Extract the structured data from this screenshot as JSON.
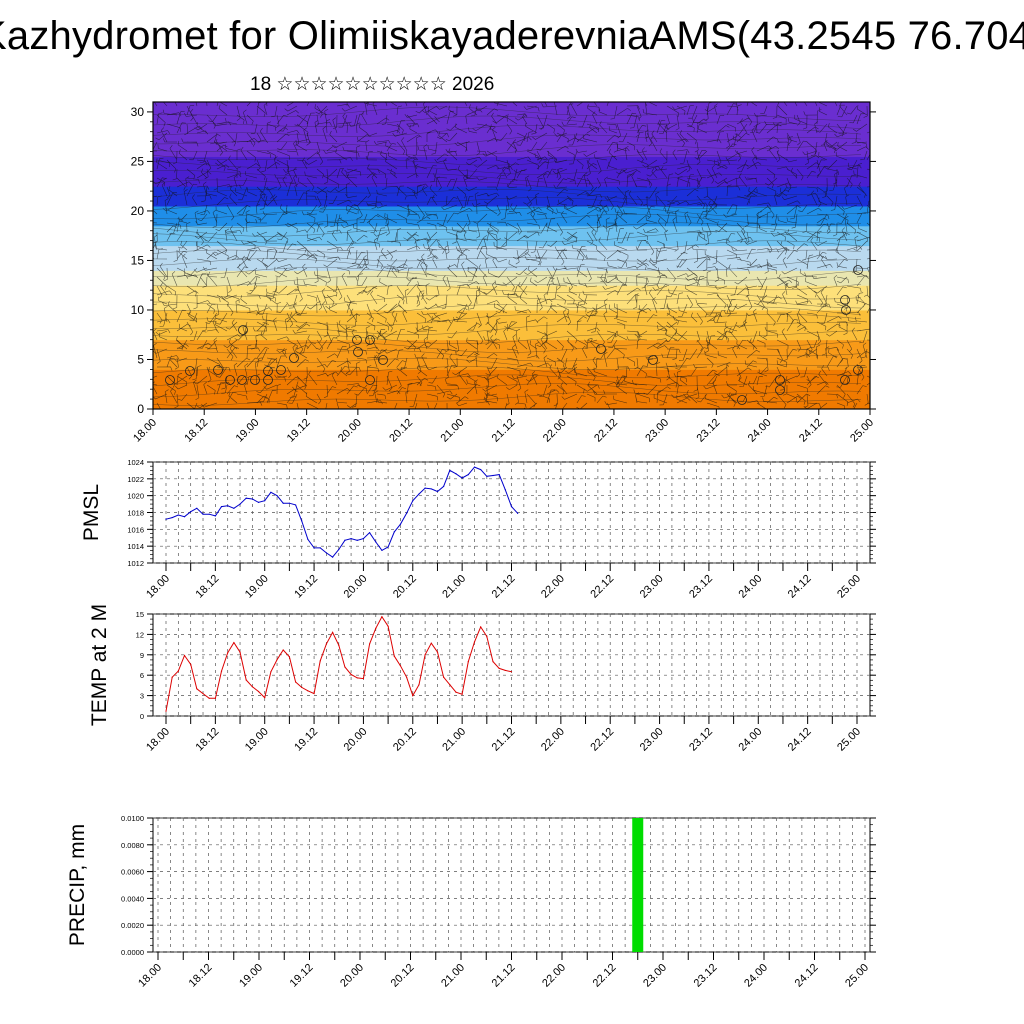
{
  "title": "Kazhydromet for OlimiiskayaderevniaAMS(43.2545 76.704",
  "subtitle": "18 ☆☆☆☆☆☆☆☆☆☆ 2026",
  "chart_data": [
    {
      "type": "heatmap",
      "name": "cross-section",
      "y_ticks": [
        "0",
        "5",
        "10",
        "15",
        "20",
        "25",
        "30"
      ],
      "ylim": [
        0,
        31
      ],
      "x_ticks": [
        "18.00",
        "18.12",
        "19.00",
        "19.12",
        "20.00",
        "20.12",
        "21.00",
        "21.12",
        "22.00",
        "22.12",
        "23.00",
        "23.12",
        "24.00",
        "24.12",
        "25.00"
      ],
      "color_bands": [
        {
          "from": 0,
          "to": 4,
          "color": "#f07a00"
        },
        {
          "from": 4,
          "to": 7,
          "color": "#f89a18"
        },
        {
          "from": 7,
          "to": 10,
          "color": "#fbbf3a"
        },
        {
          "from": 10,
          "to": 12.5,
          "color": "#fde07a"
        },
        {
          "from": 12.5,
          "to": 14,
          "color": "#e9e6b0"
        },
        {
          "from": 14,
          "to": 16.5,
          "color": "#b9d9ef"
        },
        {
          "from": 16.5,
          "to": 18.5,
          "color": "#6ec2f0"
        },
        {
          "from": 18.5,
          "to": 20.5,
          "color": "#1f8ee8"
        },
        {
          "from": 20.5,
          "to": 22.5,
          "color": "#1b2fd8"
        },
        {
          "from": 22.5,
          "to": 25.5,
          "color": "#4a1fd0"
        },
        {
          "from": 25.5,
          "to": 31,
          "color": "#6a2ed0"
        }
      ]
    },
    {
      "type": "line",
      "ylabel": "PMSL",
      "ylim": [
        1012,
        1024
      ],
      "y_ticks": [
        "1012",
        "1014",
        "1016",
        "1018",
        "1020",
        "1022",
        "1024"
      ],
      "x_ticks": [
        "18.00",
        "18.12",
        "19.00",
        "19.12",
        "20.00",
        "20.12",
        "21.00",
        "21.12",
        "22.00",
        "22.12",
        "23.00",
        "23.12",
        "24.00",
        "24.12",
        "25.00"
      ],
      "series": [
        {
          "color": "#0000cc",
          "values": [
            1017.2,
            1017.4,
            1017.7,
            1017.5,
            1018.1,
            1018.5,
            1017.8,
            1017.8,
            1017.6,
            1018.7,
            1018.8,
            1018.5,
            1019.0,
            1019.7,
            1019.6,
            1019.2,
            1019.4,
            1020.4,
            1020.0,
            1019.1,
            1019.1,
            1018.9,
            1017.0,
            1014.8,
            1013.8,
            1013.8,
            1013.2,
            1012.7,
            1013.6,
            1014.7,
            1014.9,
            1014.7,
            1014.9,
            1015.6,
            1014.5,
            1013.5,
            1013.9,
            1015.7,
            1016.6,
            1017.9,
            1019.4,
            1020.2,
            1020.9,
            1020.8,
            1020.5,
            1021.1,
            1023.0,
            1022.6,
            1022.1,
            1022.5,
            1023.4,
            1023.1,
            1022.3,
            1022.4,
            1022.5,
            1020.7,
            1018.7,
            1017.9
          ]
        }
      ]
    },
    {
      "type": "line",
      "ylabel": "TEMP at 2 M",
      "ylim": [
        0,
        15
      ],
      "y_ticks": [
        "0",
        "3",
        "6",
        "9",
        "12",
        "15"
      ],
      "x_ticks": [
        "18.00",
        "18.12",
        "19.00",
        "19.12",
        "20.00",
        "20.12",
        "21.00",
        "21.12",
        "22.00",
        "22.12",
        "23.00",
        "23.12",
        "24.00",
        "24.12",
        "25.00"
      ],
      "series": [
        {
          "color": "#dd0000",
          "values": [
            0.7,
            5.7,
            6.6,
            8.9,
            7.6,
            4.0,
            3.3,
            2.6,
            2.6,
            6.6,
            9.3,
            10.8,
            9.4,
            5.3,
            4.3,
            3.6,
            2.7,
            6.5,
            8.3,
            9.7,
            8.7,
            5.0,
            4.2,
            3.7,
            3.3,
            8.1,
            10.6,
            12.3,
            10.4,
            7.2,
            6.1,
            5.6,
            5.5,
            10.6,
            12.9,
            14.6,
            13.2,
            8.8,
            7.4,
            5.7,
            3.0,
            4.6,
            9.0,
            10.7,
            9.4,
            5.7,
            4.6,
            3.5,
            3.2,
            8.0,
            10.9,
            13.1,
            11.7,
            8.0,
            7.0,
            6.7,
            6.5
          ]
        }
      ]
    },
    {
      "type": "bar",
      "ylabel": "PRECIP, mm",
      "ylim": [
        0,
        0.01
      ],
      "y_ticks": [
        "0.0000",
        "0.0020",
        "0.0040",
        "0.0060",
        "0.0080",
        "0.0100"
      ],
      "x_ticks": [
        "18.00",
        "18.12",
        "19.00",
        "19.12",
        "20.00",
        "20.12",
        "21.00",
        "21.12",
        "22.00",
        "22.12",
        "23.00",
        "23.12",
        "24.00",
        "24.12",
        "25.00"
      ],
      "bars": [
        {
          "x": "22.18",
          "value": 0.01,
          "color": "#00dd00"
        }
      ]
    }
  ]
}
